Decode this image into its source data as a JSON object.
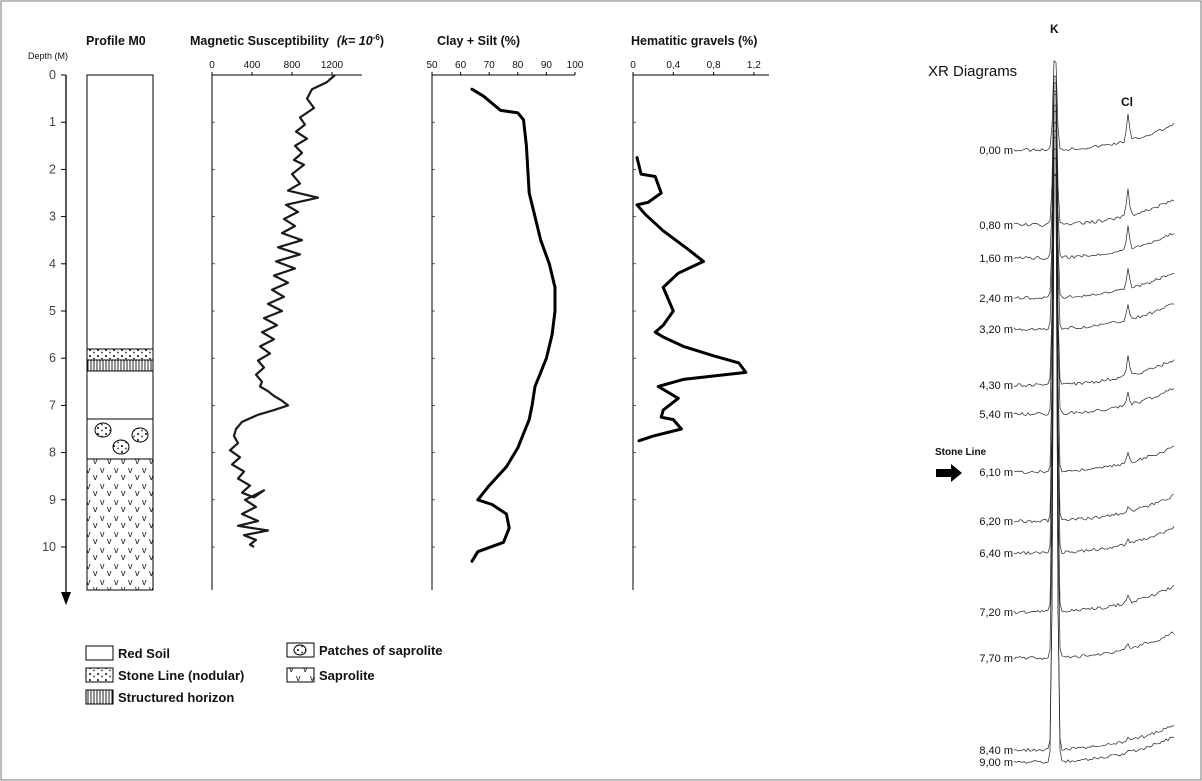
{
  "chart_data": [
    {
      "type": "table",
      "title": "Profile M0",
      "ylabel": "Depth (M)",
      "yticks": [
        0,
        1,
        2,
        3,
        4,
        5,
        6,
        7,
        8,
        9,
        10
      ],
      "ylim": [
        0,
        10.8
      ],
      "layers": [
        {
          "from": 0,
          "to": 5.8,
          "pattern": "red-soil"
        },
        {
          "from": 5.8,
          "to": 6.2,
          "pattern": "stone-line"
        },
        {
          "from": 6.2,
          "to": 7.25,
          "pattern": "red-soil"
        },
        {
          "from": 7.25,
          "to": 8.1,
          "pattern": "saprolite-patches"
        },
        {
          "from": 8.1,
          "to": 10.8,
          "pattern": "saprolite"
        }
      ]
    },
    {
      "type": "line",
      "title": "Magnetic Susceptibility",
      "title_suffix_pre": "(k= 10",
      "title_suffix_sup": "-6",
      "title_suffix_post": ")",
      "xticks": [
        "0",
        "400",
        "800",
        "1200"
      ],
      "xlim": [
        0,
        1500
      ],
      "x": [
        1230,
        1150,
        1000,
        950,
        1020,
        880,
        930,
        840,
        950,
        830,
        900,
        820,
        920,
        800,
        880,
        760,
        1060,
        740,
        860,
        720,
        830,
        700,
        900,
        660,
        880,
        640,
        830,
        620,
        760,
        600,
        720,
        560,
        700,
        520,
        650,
        500,
        620,
        480,
        580,
        460,
        520,
        440,
        500,
        480,
        560,
        620,
        700,
        760,
        620,
        460,
        300,
        240,
        220,
        260,
        180,
        280,
        200,
        320,
        260,
        380,
        300,
        420,
        520,
        330,
        440,
        300,
        460,
        260,
        560,
        320,
        440,
        380,
        420
      ],
      "y": [
        0,
        0.15,
        0.3,
        0.5,
        0.7,
        0.9,
        1.05,
        1.2,
        1.35,
        1.5,
        1.65,
        1.8,
        1.9,
        2.1,
        2.3,
        2.45,
        2.6,
        2.75,
        2.9,
        3.05,
        3.2,
        3.35,
        3.5,
        3.65,
        3.8,
        3.95,
        4.1,
        4.25,
        4.4,
        4.55,
        4.7,
        4.85,
        5.0,
        5.15,
        5.3,
        5.45,
        5.6,
        5.75,
        5.9,
        6.05,
        6.2,
        6.35,
        6.5,
        6.6,
        6.7,
        6.8,
        6.9,
        7.0,
        7.1,
        7.2,
        7.35,
        7.5,
        7.65,
        7.8,
        7.95,
        8.1,
        8.25,
        8.4,
        8.55,
        8.7,
        8.85,
        8.95,
        8.8,
        9.0,
        9.15,
        9.3,
        9.45,
        9.55,
        9.65,
        9.75,
        9.85,
        9.95,
        10.0
      ]
    },
    {
      "type": "line",
      "title": "Clay + Silt (%)",
      "xticks": [
        "50",
        "60",
        "70",
        "80",
        "90",
        "100"
      ],
      "xlim": [
        50,
        100
      ],
      "x": [
        64,
        68,
        74,
        80,
        82,
        83,
        84,
        86,
        88,
        91,
        93,
        93,
        92,
        90,
        88,
        86,
        85,
        84,
        82,
        80,
        76,
        70,
        66,
        71,
        76,
        77,
        75,
        66,
        64
      ],
      "y": [
        0.3,
        0.45,
        0.75,
        0.8,
        0.95,
        1.5,
        2.5,
        3.0,
        3.5,
        4.0,
        4.5,
        5.0,
        5.5,
        6.0,
        6.3,
        6.6,
        7.0,
        7.3,
        7.6,
        7.9,
        8.3,
        8.7,
        9.0,
        9.1,
        9.3,
        9.6,
        9.9,
        10.1,
        10.3
      ]
    },
    {
      "type": "line",
      "title": "Hematitic gravels (%)",
      "xticks": [
        "0",
        "0,4",
        "0,8",
        "1,2"
      ],
      "xlim": [
        0,
        1.35
      ],
      "x": [
        0.04,
        0.08,
        0.22,
        0.28,
        0.15,
        0.04,
        0.12,
        0.3,
        0.55,
        0.7,
        0.45,
        0.3,
        0.4,
        0.3,
        0.22,
        0.3,
        0.5,
        0.8,
        1.05,
        1.12,
        0.5,
        0.25,
        0.45,
        0.3,
        0.28,
        0.4,
        0.48,
        0.2,
        0.06
      ],
      "y": [
        1.75,
        2.1,
        2.15,
        2.5,
        2.7,
        2.75,
        2.95,
        3.3,
        3.7,
        3.95,
        4.2,
        4.5,
        5.0,
        5.3,
        5.45,
        5.55,
        5.75,
        5.95,
        6.1,
        6.3,
        6.45,
        6.6,
        6.85,
        7.1,
        7.25,
        7.3,
        7.5,
        7.65,
        7.75
      ]
    },
    {
      "type": "line",
      "title": "XR Diagrams",
      "peak_labels": [
        "K",
        "Cl"
      ],
      "series": [
        {
          "name": "0,00 m",
          "cl": 1.0
        },
        {
          "name": "0,80 m",
          "cl": 1.0
        },
        {
          "name": "1,60 m",
          "cl": 0.85
        },
        {
          "name": "2,40 m",
          "cl": 0.75
        },
        {
          "name": "3,20 m",
          "cl": 0.55
        },
        {
          "name": "4,30 m",
          "cl": 0.75
        },
        {
          "name": "5,40 m",
          "cl": 0.45
        },
        {
          "name": "6,10 m",
          "cl": 0.35
        },
        {
          "name": "6,20 m",
          "cl": 0.15
        },
        {
          "name": "6,40 m",
          "cl": 0.15
        },
        {
          "name": "7,20 m",
          "cl": 0.25
        },
        {
          "name": "7,70 m",
          "cl": 0.15
        },
        {
          "name": "8,40 m",
          "cl": 0.1
        },
        {
          "name": "9,00 m",
          "cl": 0.05
        }
      ],
      "annotation": "Stone Line"
    }
  ],
  "legend": [
    {
      "label": "Red Soil",
      "pattern": "red-soil"
    },
    {
      "label": "Stone Line  (nodular)",
      "pattern": "stone-line"
    },
    {
      "label": "Structured horizon",
      "pattern": "structured"
    },
    {
      "label": "Patches of saprolite",
      "pattern": "saprolite-patches"
    },
    {
      "label": "Saprolite",
      "pattern": "saprolite"
    }
  ],
  "colors": {
    "ink": "#000000",
    "frame": "#555555"
  }
}
